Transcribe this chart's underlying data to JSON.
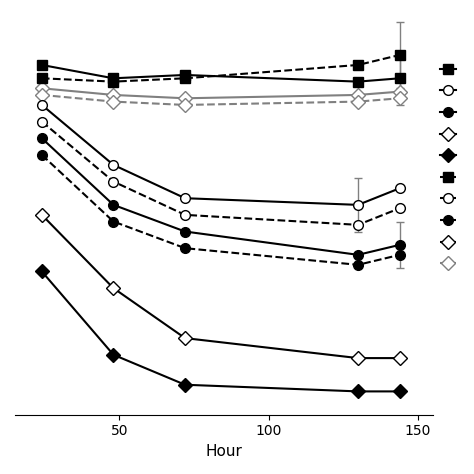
{
  "xlabel": "Hour",
  "xlim": [
    15,
    155
  ],
  "ylim": [
    -5,
    115
  ],
  "xticks": [
    50,
    100,
    150
  ],
  "figsize": [
    4.74,
    4.74
  ],
  "dpi": 100,
  "series": [
    {
      "name": "solid_square_black",
      "x": [
        24,
        48,
        72,
        130,
        144
      ],
      "y": [
        100,
        96,
        97,
        95,
        96
      ],
      "yerr": [
        null,
        null,
        null,
        null,
        8
      ],
      "color": "black",
      "linestyle": "solid",
      "marker": "s",
      "fillstyle": "full",
      "markersize": 7
    },
    {
      "name": "dashed_square_black",
      "x": [
        24,
        48,
        72,
        130,
        144
      ],
      "y": [
        96,
        95,
        96,
        100,
        103
      ],
      "yerr": [
        null,
        null,
        null,
        null,
        10
      ],
      "color": "black",
      "linestyle": "dashed",
      "marker": "s",
      "fillstyle": "full",
      "markersize": 7
    },
    {
      "name": "solid_diamond_gray",
      "x": [
        24,
        48,
        72,
        130,
        144
      ],
      "y": [
        93,
        91,
        90,
        91,
        92
      ],
      "yerr": [
        null,
        null,
        null,
        null,
        null
      ],
      "color": "gray",
      "linestyle": "solid",
      "marker": "D",
      "fillstyle": "none",
      "markersize": 7
    },
    {
      "name": "dashed_diamond_gray",
      "x": [
        24,
        48,
        72,
        130,
        144
      ],
      "y": [
        91,
        89,
        88,
        89,
        90
      ],
      "yerr": [
        null,
        null,
        null,
        null,
        null
      ],
      "color": "gray",
      "linestyle": "dashed",
      "marker": "D",
      "fillstyle": "none",
      "markersize": 7
    },
    {
      "name": "solid_circle_open",
      "x": [
        24,
        48,
        72,
        130,
        144
      ],
      "y": [
        88,
        70,
        60,
        58,
        63
      ],
      "yerr": [
        null,
        null,
        null,
        8,
        null
      ],
      "color": "black",
      "linestyle": "solid",
      "marker": "o",
      "fillstyle": "none",
      "markersize": 7
    },
    {
      "name": "dashed_circle_open",
      "x": [
        24,
        48,
        72,
        130,
        144
      ],
      "y": [
        83,
        65,
        55,
        52,
        57
      ],
      "yerr": [
        null,
        null,
        null,
        null,
        null
      ],
      "color": "black",
      "linestyle": "dashed",
      "marker": "o",
      "fillstyle": "none",
      "markersize": 7
    },
    {
      "name": "solid_circle_filled",
      "x": [
        24,
        48,
        72,
        130,
        144
      ],
      "y": [
        78,
        58,
        50,
        43,
        46
      ],
      "yerr": [
        null,
        null,
        null,
        null,
        7
      ],
      "color": "black",
      "linestyle": "solid",
      "marker": "o",
      "fillstyle": "full",
      "markersize": 7
    },
    {
      "name": "dashed_circle_filled",
      "x": [
        24,
        48,
        72,
        130,
        144
      ],
      "y": [
        73,
        53,
        45,
        40,
        43
      ],
      "yerr": [
        null,
        null,
        null,
        null,
        null
      ],
      "color": "black",
      "linestyle": "dashed",
      "marker": "o",
      "fillstyle": "full",
      "markersize": 7
    },
    {
      "name": "solid_diamond_open_black",
      "x": [
        24,
        48,
        72,
        130,
        144
      ],
      "y": [
        55,
        33,
        18,
        12,
        12
      ],
      "yerr": [
        null,
        null,
        null,
        null,
        null
      ],
      "color": "black",
      "linestyle": "solid",
      "marker": "D",
      "fillstyle": "none",
      "markersize": 7
    },
    {
      "name": "solid_diamond_filled_black",
      "x": [
        24,
        48,
        72,
        130,
        144
      ],
      "y": [
        38,
        13,
        4,
        2,
        2
      ],
      "yerr": [
        null,
        null,
        null,
        null,
        null
      ],
      "color": "black",
      "linestyle": "solid",
      "marker": "D",
      "fillstyle": "full",
      "markersize": 7
    }
  ],
  "legend_entries": [
    {
      "color": "black",
      "linestyle": "solid",
      "marker": "s",
      "fillstyle": "full"
    },
    {
      "color": "black",
      "linestyle": "solid",
      "marker": "o",
      "fillstyle": "none"
    },
    {
      "color": "black",
      "linestyle": "solid",
      "marker": "o",
      "fillstyle": "full"
    },
    {
      "color": "black",
      "linestyle": "solid",
      "marker": "D",
      "fillstyle": "none"
    },
    {
      "color": "black",
      "linestyle": "solid",
      "marker": "D",
      "fillstyle": "full"
    },
    {
      "color": "black",
      "linestyle": "dashed",
      "marker": "s",
      "fillstyle": "full"
    },
    {
      "color": "black",
      "linestyle": "dashed",
      "marker": "o",
      "fillstyle": "none"
    },
    {
      "color": "black",
      "linestyle": "dashed",
      "marker": "o",
      "fillstyle": "full"
    },
    {
      "color": "black",
      "linestyle": "dashed",
      "marker": "D",
      "fillstyle": "none"
    },
    {
      "color": "gray",
      "linestyle": "dashed",
      "marker": "D",
      "fillstyle": "none"
    }
  ]
}
